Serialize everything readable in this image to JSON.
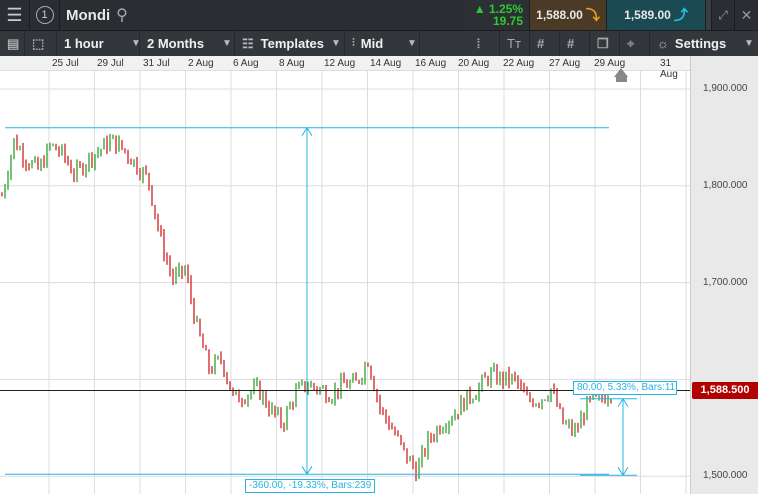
{
  "header": {
    "title": "Mondi",
    "change_percent": "1.25%",
    "change_value": "19.75",
    "sell_price": "1,588.00",
    "buy_price": "1,589.00",
    "instrument_number": "1"
  },
  "toolbar": {
    "interval": "1 hour",
    "range": "2 Months",
    "templates": "Templates",
    "price_type": "Mid",
    "settings": "Settings"
  },
  "colors": {
    "up": "#1a9a1a",
    "down": "#cc1111",
    "measure": "#27b4e3",
    "price_tag": "#b30000",
    "change_up": "#2ec92e",
    "sell_bg": "#4b3b26",
    "buy_bg": "#1b4a52"
  },
  "chart_data": {
    "type": "ohlc",
    "x_tick_labels": [
      "25 Jul",
      "29 Jul",
      "31 Jul",
      "2 Aug",
      "6 Aug",
      "8 Aug",
      "12 Aug",
      "14 Aug",
      "16 Aug",
      "20 Aug",
      "22 Aug",
      "27 Aug",
      "29 Aug",
      "31 Aug"
    ],
    "y_tick_labels": [
      "1,900.000",
      "1,800.000",
      "1,700.000",
      "1,500.000"
    ],
    "ylim": [
      1480,
      1920
    ],
    "approx_closes": [
      1790,
      1847,
      1827,
      1816,
      1842,
      1832,
      1811,
      1827,
      1837,
      1847,
      1837,
      1822,
      1806,
      1744,
      1703,
      1713,
      1652,
      1610,
      1621,
      1579,
      1585,
      1590,
      1569,
      1554,
      1585,
      1595,
      1590,
      1585,
      1595,
      1595,
      1621,
      1569,
      1549,
      1523,
      1505,
      1538,
      1554,
      1564,
      1579,
      1590,
      1605,
      1600,
      1600,
      1579,
      1579,
      1590,
      1554,
      1545,
      1574,
      1579,
      1588.5
    ],
    "current_price": "1,588.500",
    "measurements": [
      {
        "label": "-360.00, -19.33%, Bars:239",
        "from": 1860,
        "to": 1500
      },
      {
        "label": "80.00, 5.33%, Bars:11",
        "from": 1580,
        "to": 1500
      }
    ]
  }
}
